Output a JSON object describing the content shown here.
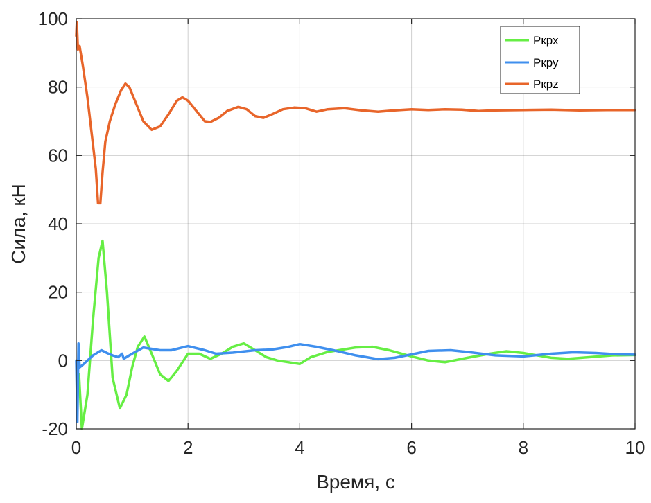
{
  "chart_data": {
    "type": "line",
    "xlabel": "Время, с",
    "ylabel": "Сила, кН",
    "xlim": [
      0,
      10
    ],
    "ylim": [
      -20,
      100
    ],
    "xticks": [
      "0",
      "2",
      "4",
      "6",
      "8",
      "10"
    ],
    "yticks": [
      "-20",
      "0",
      "20",
      "40",
      "60",
      "80",
      "100"
    ],
    "grid": true,
    "legend_position": "top-right",
    "series": [
      {
        "name": "Ркрх",
        "color": "#66EE44",
        "points": [
          [
            0.05,
            -4
          ],
          [
            0.1,
            -20
          ],
          [
            0.2,
            -10
          ],
          [
            0.3,
            12
          ],
          [
            0.4,
            30
          ],
          [
            0.47,
            35
          ],
          [
            0.55,
            20
          ],
          [
            0.65,
            -5
          ],
          [
            0.78,
            -14
          ],
          [
            0.9,
            -10
          ],
          [
            1.0,
            -2
          ],
          [
            1.1,
            4
          ],
          [
            1.22,
            7
          ],
          [
            1.35,
            2
          ],
          [
            1.5,
            -4
          ],
          [
            1.65,
            -6
          ],
          [
            1.8,
            -3
          ],
          [
            2.0,
            2
          ],
          [
            2.2,
            2
          ],
          [
            2.4,
            0.5
          ],
          [
            2.6,
            2
          ],
          [
            2.8,
            4
          ],
          [
            3.0,
            5
          ],
          [
            3.2,
            3
          ],
          [
            3.4,
            1
          ],
          [
            3.6,
            0
          ],
          [
            3.8,
            -0.5
          ],
          [
            4.0,
            -1
          ],
          [
            4.2,
            1
          ],
          [
            4.5,
            2.5
          ],
          [
            5.0,
            3.8
          ],
          [
            5.3,
            4
          ],
          [
            5.6,
            3
          ],
          [
            6.0,
            1.2
          ],
          [
            6.3,
            0
          ],
          [
            6.6,
            -0.5
          ],
          [
            7.0,
            0.8
          ],
          [
            7.4,
            2
          ],
          [
            7.7,
            2.7
          ],
          [
            8.0,
            2.2
          ],
          [
            8.5,
            0.8
          ],
          [
            8.8,
            0.5
          ],
          [
            9.2,
            1
          ],
          [
            9.6,
            1.5
          ],
          [
            10.0,
            1.6
          ]
        ]
      },
      {
        "name": "Ркру",
        "color": "#3F8FEE",
        "points": [
          [
            0.0,
            0
          ],
          [
            0.02,
            -18
          ],
          [
            0.04,
            5
          ],
          [
            0.06,
            -2
          ],
          [
            0.1,
            -1.5
          ],
          [
            0.2,
            0
          ],
          [
            0.3,
            1.5
          ],
          [
            0.4,
            2.5
          ],
          [
            0.45,
            3
          ],
          [
            0.55,
            2.2
          ],
          [
            0.65,
            1.5
          ],
          [
            0.75,
            1
          ],
          [
            0.82,
            2
          ],
          [
            0.85,
            0.5
          ],
          [
            0.9,
            1
          ],
          [
            1.0,
            2
          ],
          [
            1.2,
            3.8
          ],
          [
            1.5,
            3
          ],
          [
            1.7,
            3
          ],
          [
            2.0,
            4.2
          ],
          [
            2.3,
            3
          ],
          [
            2.5,
            2
          ],
          [
            2.8,
            2.3
          ],
          [
            3.2,
            3
          ],
          [
            3.5,
            3.2
          ],
          [
            3.8,
            4
          ],
          [
            4.0,
            4.8
          ],
          [
            4.3,
            4
          ],
          [
            4.6,
            3
          ],
          [
            5.0,
            1.5
          ],
          [
            5.4,
            0.4
          ],
          [
            5.7,
            0.8
          ],
          [
            6.0,
            1.8
          ],
          [
            6.3,
            2.8
          ],
          [
            6.7,
            3
          ],
          [
            7.0,
            2.5
          ],
          [
            7.5,
            1.5
          ],
          [
            8.0,
            1.2
          ],
          [
            8.5,
            2
          ],
          [
            8.9,
            2.4
          ],
          [
            9.3,
            2.2
          ],
          [
            9.7,
            1.8
          ],
          [
            10.0,
            1.7
          ]
        ]
      },
      {
        "name": "Ркрz",
        "color": "#E8652A",
        "points": [
          [
            0.0,
            95
          ],
          [
            0.01,
            99
          ],
          [
            0.03,
            91
          ],
          [
            0.06,
            92
          ],
          [
            0.12,
            86
          ],
          [
            0.2,
            77
          ],
          [
            0.3,
            63
          ],
          [
            0.35,
            56
          ],
          [
            0.39,
            46
          ],
          [
            0.43,
            46
          ],
          [
            0.47,
            55
          ],
          [
            0.52,
            64
          ],
          [
            0.6,
            70
          ],
          [
            0.7,
            75
          ],
          [
            0.8,
            79
          ],
          [
            0.88,
            81
          ],
          [
            0.95,
            80
          ],
          [
            1.05,
            76
          ],
          [
            1.2,
            70
          ],
          [
            1.35,
            67.5
          ],
          [
            1.5,
            68.5
          ],
          [
            1.65,
            72
          ],
          [
            1.8,
            76
          ],
          [
            1.9,
            77
          ],
          [
            2.0,
            76
          ],
          [
            2.15,
            73
          ],
          [
            2.3,
            70
          ],
          [
            2.4,
            69.8
          ],
          [
            2.55,
            71
          ],
          [
            2.7,
            73
          ],
          [
            2.9,
            74.2
          ],
          [
            3.05,
            73.5
          ],
          [
            3.2,
            71.5
          ],
          [
            3.35,
            71
          ],
          [
            3.5,
            72
          ],
          [
            3.7,
            73.5
          ],
          [
            3.9,
            74
          ],
          [
            4.1,
            73.8
          ],
          [
            4.3,
            72.8
          ],
          [
            4.5,
            73.5
          ],
          [
            4.8,
            73.8
          ],
          [
            5.1,
            73.2
          ],
          [
            5.4,
            72.8
          ],
          [
            5.7,
            73.2
          ],
          [
            6.0,
            73.5
          ],
          [
            6.3,
            73.3
          ],
          [
            6.6,
            73.5
          ],
          [
            6.9,
            73.4
          ],
          [
            7.2,
            73
          ],
          [
            7.5,
            73.2
          ],
          [
            8.0,
            73.3
          ],
          [
            8.5,
            73.4
          ],
          [
            9.0,
            73.2
          ],
          [
            9.5,
            73.3
          ],
          [
            10.0,
            73.3
          ]
        ]
      }
    ]
  }
}
